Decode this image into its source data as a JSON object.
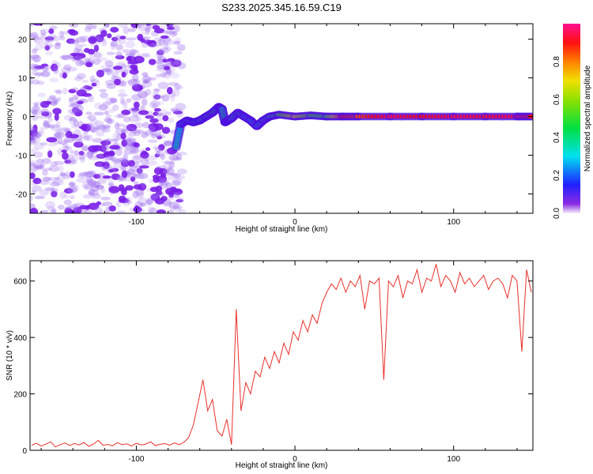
{
  "chart_data": [
    {
      "type": "heatmap",
      "title": "S233.2025.345.16.59.C19",
      "xlabel": "Height of straight line (km)",
      "ylabel": "Frequency (Hz)",
      "xlim": [
        -167,
        150
      ],
      "ylim": [
        -25,
        24
      ],
      "xticks": [
        -100,
        0,
        100
      ],
      "yticks": [
        -20,
        -10,
        0,
        10,
        20
      ],
      "colorbar": {
        "label": "Normalized spectral amplitude",
        "range": [
          0,
          1
        ],
        "ticks": [
          "0.0",
          "0.2",
          "0.4",
          "0.6",
          "0.8"
        ]
      },
      "noise_region_xmax": -74,
      "ridge": {
        "height_km": [
          -75,
          -72,
          -68,
          -64,
          -60,
          -56,
          -52,
          -48,
          -46,
          -44,
          -42,
          -40,
          -36,
          -32,
          -28,
          -24,
          -20,
          -16,
          -10,
          0,
          10,
          20,
          30,
          40,
          60,
          80,
          100,
          120,
          140,
          149
        ],
        "freq_hz": [
          -8,
          -2,
          -1,
          -1.5,
          -1,
          0,
          1,
          2.5,
          2,
          -1.5,
          -1,
          -0.5,
          1,
          0,
          -1,
          -2.5,
          -1,
          0,
          0.5,
          0,
          0.3,
          0,
          0,
          0,
          0,
          0,
          0,
          0,
          0,
          0
        ],
        "amplitude": [
          0.35,
          0.3,
          0.35,
          0.3,
          0.35,
          0.4,
          0.45,
          0.4,
          0.35,
          0.4,
          0.3,
          0.35,
          0.4,
          0.35,
          0.3,
          0.3,
          0.35,
          0.4,
          0.5,
          0.7,
          0.5,
          0.5,
          0.9,
          0.85,
          0.95,
          0.9,
          0.95,
          0.92,
          0.95,
          0.9
        ]
      }
    },
    {
      "type": "line",
      "xlabel": "Height of straight line (km)",
      "ylabel": "SNR (10 * v/v)",
      "xlim": [
        -167,
        150
      ],
      "ylim": [
        0,
        672
      ],
      "xticks": [
        -100,
        0,
        100
      ],
      "yticks": [
        0,
        200,
        400,
        600
      ],
      "color": "#e8302a",
      "x_start": -166,
      "x_step": 3,
      "values": [
        18,
        25,
        15,
        22,
        30,
        12,
        20,
        26,
        17,
        24,
        19,
        28,
        14,
        22,
        35,
        18,
        21,
        16,
        27,
        20,
        23,
        15,
        25,
        19,
        22,
        30,
        17,
        21,
        24,
        18,
        26,
        20,
        28,
        45,
        90,
        170,
        250,
        140,
        180,
        70,
        50,
        110,
        20,
        500,
        140,
        240,
        200,
        280,
        260,
        330,
        290,
        350,
        310,
        380,
        340,
        420,
        390,
        460,
        420,
        480,
        450,
        520,
        560,
        590,
        570,
        610,
        560,
        600,
        580,
        620,
        500,
        600,
        590,
        610,
        250,
        600,
        580,
        620,
        540,
        600,
        590,
        640,
        560,
        610,
        600,
        660,
        580,
        620,
        600,
        560,
        630,
        590,
        610,
        580,
        600,
        620,
        570,
        600,
        610,
        590,
        540,
        620,
        600,
        350,
        640,
        560
      ]
    }
  ]
}
